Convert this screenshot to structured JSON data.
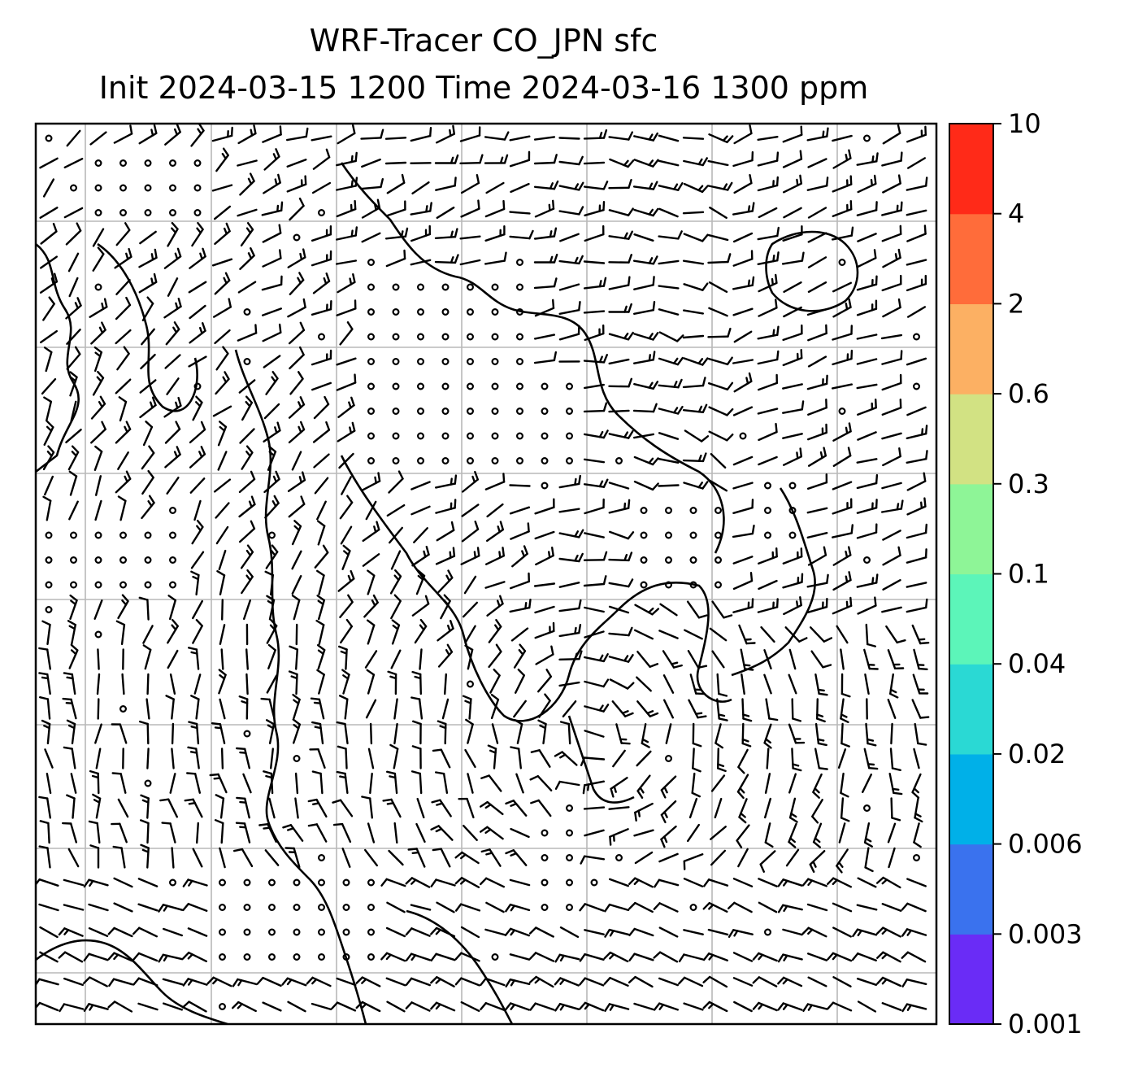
{
  "title": {
    "line1": "WRF-Tracer CO_JPN sfc",
    "line2": "Init 2024-03-15 1200 Time 2024-03-16 1300 ppm"
  },
  "map": {
    "graticule": true,
    "gridlines": {
      "vertical": 7,
      "horizontal": 7
    },
    "field": "surface wind barbs over coastlines",
    "tracer_shading_visible": false
  },
  "colorbar": {
    "placement": "right",
    "levels": [
      "0.001",
      "0.003",
      "0.006",
      "0.02",
      "0.04",
      "0.1",
      "0.3",
      "0.6",
      "2",
      "4",
      "10"
    ],
    "colors": [
      "#6a2cf6",
      "#3a72ee",
      "#00b0e8",
      "#2ad9d4",
      "#5cf5b9",
      "#8ef597",
      "#d2e283",
      "#fcb063",
      "#ff6c3a",
      "#ff2a18"
    ]
  }
}
